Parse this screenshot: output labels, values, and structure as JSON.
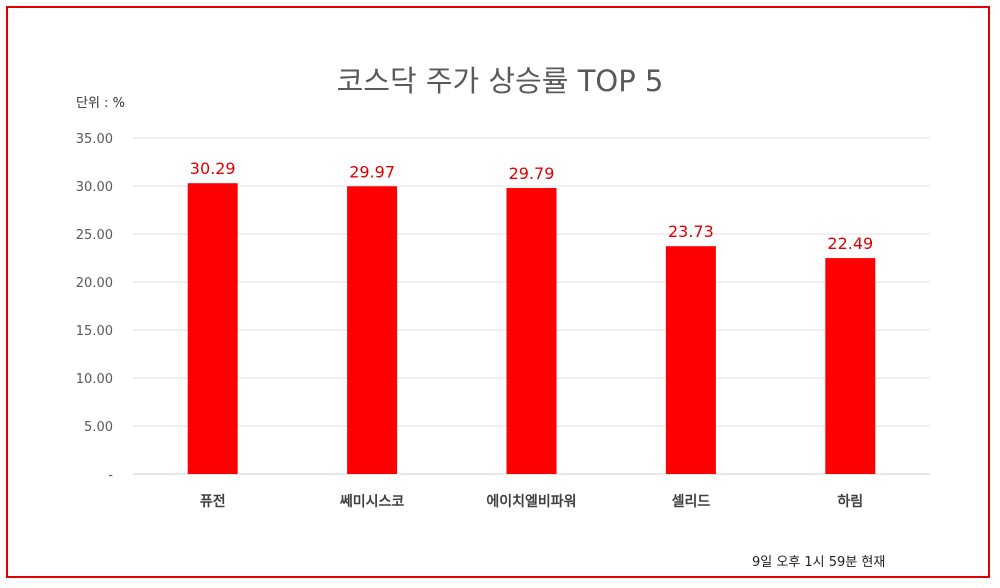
{
  "chart_data": {
    "type": "bar",
    "title": "코스닥 주가 상승률 TOP 5",
    "unit_label": "단위 : %",
    "categories": [
      "퓨전",
      "쎄미시스코",
      "에이치엘비파워",
      "셀리드",
      "하림"
    ],
    "values": [
      30.29,
      29.97,
      29.79,
      23.73,
      22.49
    ],
    "data_labels": [
      "30.29",
      "29.97",
      "29.79",
      "23.73",
      "22.49"
    ],
    "ylim": [
      0,
      35
    ],
    "yticks": [
      0,
      5,
      10,
      15,
      20,
      25,
      30,
      35
    ],
    "ytick_labels": [
      "-",
      "5.00",
      "10.00",
      "15.00",
      "20.00",
      "25.00",
      "30.00",
      "35.00"
    ],
    "grid": true,
    "legend": "none",
    "bar_color": "#ff0000",
    "label_color": "#e00000",
    "note": "9일  오후 1시 59분 현재"
  }
}
